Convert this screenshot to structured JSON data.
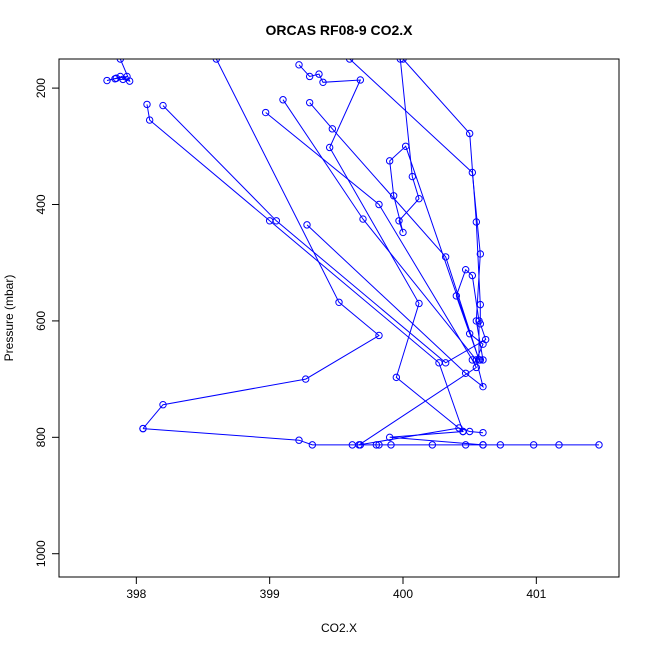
{
  "chart_data": {
    "type": "line",
    "title": "ORCAS RF08-9 CO2.X",
    "xlabel": "CO2.X",
    "ylabel": "Pressure (mbar)",
    "xlim": [
      397.42,
      401.62
    ],
    "ylim": [
      1040,
      150
    ],
    "y_reversed": true,
    "x_ticks": [
      398,
      399,
      400,
      401
    ],
    "y_ticks": [
      200,
      400,
      600,
      800,
      1000
    ],
    "grid": false,
    "legend": "none",
    "line_color": "#0000ff",
    "marker": "open-circle",
    "series": [
      {
        "points": [
          [
            398.05,
            785
          ],
          [
            399.22,
            805
          ],
          [
            399.32,
            813
          ],
          [
            399.62,
            813
          ],
          [
            399.68,
            813
          ],
          [
            399.8,
            813
          ],
          [
            399.82,
            813
          ],
          [
            399.91,
            813
          ],
          [
            400.22,
            813
          ],
          [
            400.47,
            813
          ],
          [
            400.6,
            813
          ],
          [
            400.73,
            813
          ],
          [
            400.98,
            813
          ],
          [
            401.17,
            813
          ],
          [
            401.47,
            813
          ]
        ]
      },
      {
        "points": [
          [
            398.05,
            785
          ],
          [
            398.2,
            744
          ],
          [
            399.27,
            700
          ],
          [
            399.82,
            625
          ],
          [
            399.52,
            568
          ],
          [
            398.6,
            150
          ]
        ]
      },
      {
        "points": [
          [
            397.88,
            180
          ],
          [
            397.85,
            183
          ],
          [
            397.78,
            187
          ],
          [
            397.84,
            184
          ],
          [
            397.93,
            180
          ],
          [
            397.9,
            185
          ],
          [
            397.95,
            188
          ],
          [
            397.88,
            150
          ]
        ]
      },
      {
        "points": [
          [
            398.08,
            228
          ],
          [
            398.1,
            255
          ],
          [
            399.0,
            428
          ],
          [
            400.27,
            672
          ],
          [
            400.45,
            790
          ],
          [
            399.9,
            800
          ],
          [
            400.6,
            813
          ]
        ]
      },
      {
        "points": [
          [
            398.2,
            230
          ],
          [
            399.05,
            428
          ],
          [
            400.32,
            672
          ],
          [
            400.62,
            632
          ],
          [
            400.58,
            605
          ],
          [
            400.58,
            572
          ],
          [
            400.55,
            430
          ],
          [
            400.5,
            278
          ],
          [
            400.0,
            150
          ]
        ]
      },
      {
        "points": [
          [
            399.28,
            435
          ],
          [
            400.47,
            690
          ],
          [
            400.6,
            713
          ],
          [
            400.55,
            667
          ],
          [
            400.58,
            667
          ],
          [
            400.6,
            667
          ],
          [
            400.55,
            600
          ],
          [
            400.58,
            485
          ],
          [
            400.52,
            345
          ],
          [
            399.6,
            150
          ]
        ]
      },
      {
        "points": [
          [
            398.97,
            242
          ],
          [
            399.82,
            400
          ],
          [
            400.52,
            667
          ],
          [
            400.55,
            680
          ],
          [
            399.67,
            813
          ],
          [
            400.42,
            784
          ],
          [
            400.5,
            790
          ],
          [
            400.6,
            792
          ]
        ]
      },
      {
        "points": [
          [
            399.1,
            220
          ],
          [
            399.7,
            425
          ],
          [
            400.55,
            667
          ],
          [
            400.6,
            640
          ],
          [
            400.5,
            622
          ],
          [
            400.4,
            557
          ],
          [
            400.47,
            512
          ],
          [
            400.52,
            522
          ],
          [
            400.57,
            600
          ],
          [
            400.57,
            667
          ]
        ]
      },
      {
        "points": [
          [
            399.3,
            225
          ],
          [
            399.47,
            270
          ],
          [
            400.32,
            490
          ],
          [
            400.57,
            667
          ],
          [
            400.02,
            300
          ],
          [
            399.9,
            325
          ],
          [
            399.93,
            385
          ],
          [
            400.0,
            448
          ],
          [
            399.97,
            428
          ],
          [
            400.12,
            390
          ],
          [
            400.07,
            352
          ],
          [
            399.98,
            150
          ]
        ]
      },
      {
        "points": [
          [
            399.22,
            160
          ],
          [
            399.3,
            180
          ],
          [
            399.37,
            176
          ],
          [
            399.4,
            190
          ],
          [
            399.68,
            186
          ],
          [
            399.45,
            302
          ],
          [
            400.12,
            570
          ],
          [
            399.95,
            697
          ],
          [
            400.45,
            790
          ]
        ]
      }
    ]
  }
}
